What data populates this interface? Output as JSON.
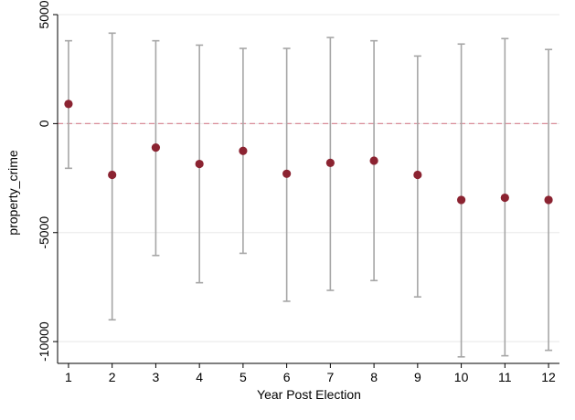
{
  "colors": {
    "background": "#ffffff",
    "point": "#8b2331",
    "error_bar": "#a6a6a6",
    "reference_line": "#d98c98",
    "gridline": "#e8e8e8",
    "axis": "#000000"
  },
  "chart_data": {
    "type": "scatter",
    "title": "",
    "xlabel": "Year Post Election",
    "ylabel": "property_crime",
    "x": [
      1,
      2,
      3,
      4,
      5,
      6,
      7,
      8,
      9,
      10,
      11,
      12
    ],
    "y": [
      900,
      -2350,
      -1100,
      -1850,
      -1250,
      -2300,
      -1800,
      -1700,
      -2350,
      -3500,
      -3400,
      -3500
    ],
    "ci_low": [
      -2050,
      -9000,
      -6050,
      -7300,
      -5950,
      -8150,
      -7650,
      -7200,
      -7950,
      -10700,
      -10650,
      -10400
    ],
    "ci_high": [
      3800,
      4150,
      3800,
      3600,
      3450,
      3450,
      3950,
      3800,
      3100,
      3650,
      3900,
      3400
    ],
    "reference_line_y": 0,
    "xlim": [
      0.75,
      12.25
    ],
    "ylim": [
      -11000,
      5000
    ],
    "xticks": [
      1,
      2,
      3,
      4,
      5,
      6,
      7,
      8,
      9,
      10,
      11,
      12
    ],
    "yticks": [
      5000,
      0,
      -5000,
      -10000
    ],
    "ytick_labels": [
      "5000",
      "0",
      "-5000",
      "-10000"
    ],
    "grid": true,
    "legend": false
  }
}
